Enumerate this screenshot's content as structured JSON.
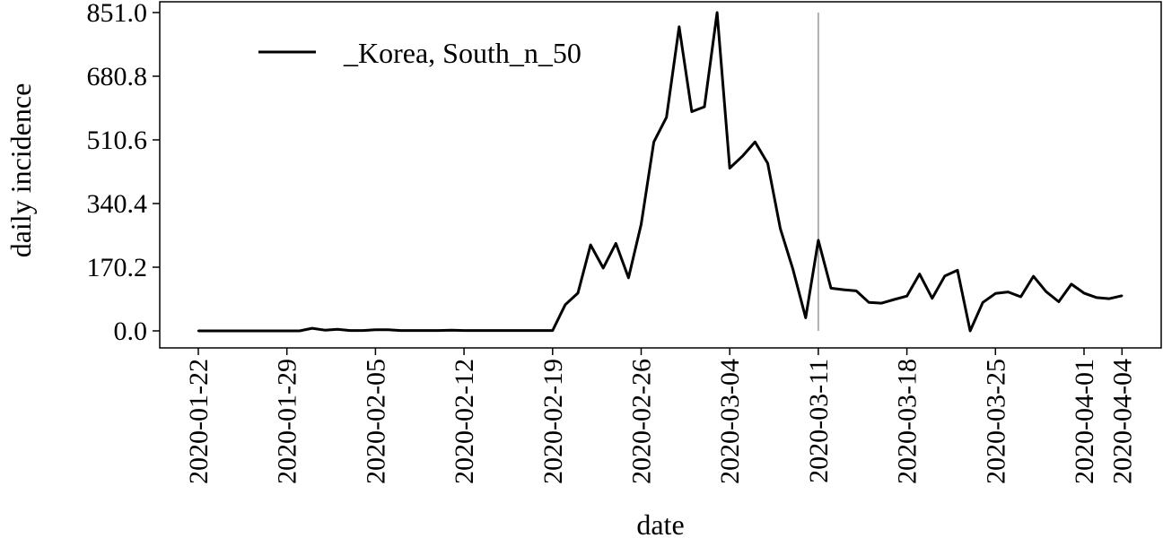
{
  "chart_data": {
    "type": "line",
    "xlabel": "date",
    "ylabel": "daily incidence",
    "ylim": [
      0.0,
      851.0
    ],
    "yticks": [
      "0.0",
      "170.2",
      "340.4",
      "510.6",
      "680.8",
      "851.0"
    ],
    "x_start": "2020-01-22",
    "xticks": [
      {
        "day": 0,
        "label": "2020-01-22"
      },
      {
        "day": 7,
        "label": "2020-01-29"
      },
      {
        "day": 14,
        "label": "2020-02-05"
      },
      {
        "day": 21,
        "label": "2020-02-12"
      },
      {
        "day": 28,
        "label": "2020-02-19"
      },
      {
        "day": 35,
        "label": "2020-02-26"
      },
      {
        "day": 42,
        "label": "2020-03-04"
      },
      {
        "day": 49,
        "label": "2020-03-11"
      },
      {
        "day": 56,
        "label": "2020-03-18"
      },
      {
        "day": 63,
        "label": "2020-03-25"
      },
      {
        "day": 70,
        "label": "2020-04-01"
      },
      {
        "day": 73,
        "label": "2020-04-04"
      }
    ],
    "vline_date": "2020-03-11",
    "series": [
      {
        "name": "_Korea, South_n_50",
        "color": "#000000",
        "values": [
          0,
          0,
          0,
          0,
          0,
          0,
          0,
          0,
          0,
          7,
          2,
          4,
          1,
          1,
          3,
          3,
          1,
          1,
          1,
          1,
          2,
          1,
          1,
          1,
          1,
          1,
          1,
          1,
          1,
          70,
          101,
          230,
          168,
          234,
          142,
          285,
          505,
          571,
          813,
          586,
          599,
          851,
          435,
          467,
          505,
          448,
          273,
          164,
          35,
          242,
          114,
          110,
          107,
          76,
          74,
          84,
          93,
          152,
          87,
          147,
          162,
          0,
          76,
          100,
          104,
          91,
          146,
          105,
          78,
          125,
          101,
          89,
          86,
          94
        ]
      }
    ],
    "legend_position": "top-left"
  }
}
